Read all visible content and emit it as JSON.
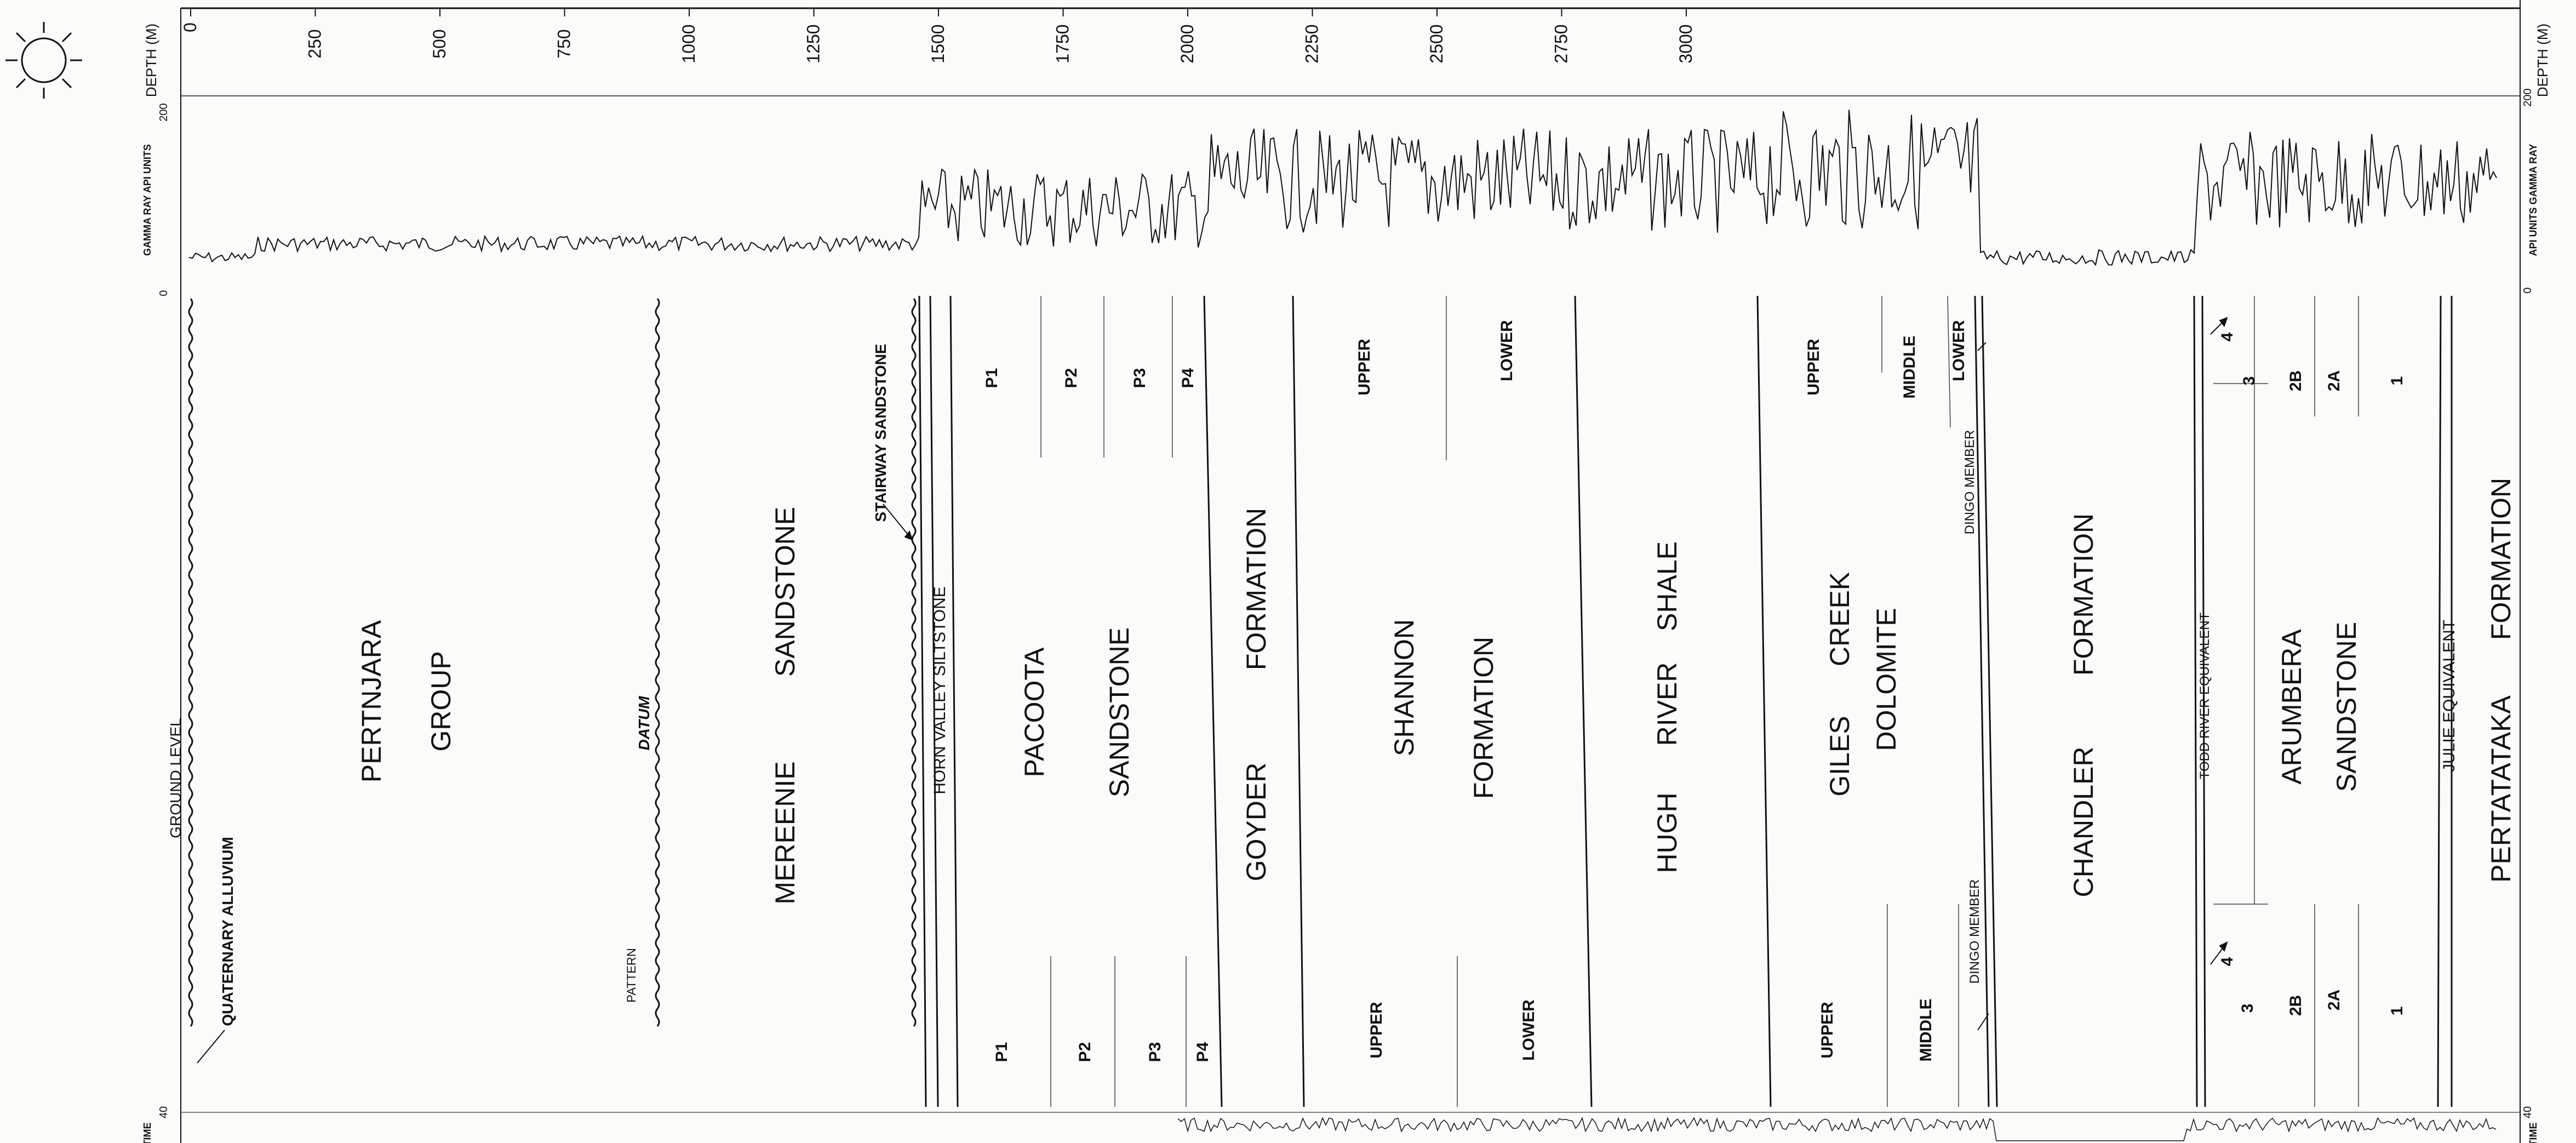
{
  "depth_axis": {
    "label_top": "DEPTH (M)",
    "label_right": "DEPTH (M)",
    "ticks": [
      "0",
      "250",
      "500",
      "750",
      "1000",
      "1250",
      "1500",
      "1750",
      "2000",
      "2250",
      "2500",
      "2750",
      "3000"
    ]
  },
  "gamma_track": {
    "label_left": "GAMMA RAY API UNITS",
    "label_right": "API UNITS GAMMA RAY",
    "scale_top_left": "200",
    "scale_bottom_left": "0",
    "scale_top_right": "200",
    "scale_bottom_right": "0"
  },
  "sonic_track": {
    "label_left": "TIME",
    "label_right": "TIME",
    "scale_left": "40",
    "scale_right": "40"
  },
  "markers": {
    "ground_level": "GROUND LEVEL",
    "datum": "DATUM",
    "quaternary_alluvium": "QUATERNARY ALLUVIUM",
    "stairway_sandstone": "STAIRWAY SANDSTONE",
    "horn_valley_siltstone": "HORN VALLEY SILTSTONE",
    "dingo_member_top": "DINGO MEMBER",
    "dingo_member_bottom": "DINGO MEMBER",
    "todd_river_equivalent": "TODD RIVER EQUIVALENT",
    "julie_equivalent": "JULIE EQUIVALENT",
    "faint_stamp": "PATTERN"
  },
  "formations": {
    "pertnjara_1": "PERTNJARA",
    "pertnjara_2": "GROUP",
    "mereenie_1": "MEREENIE",
    "mereenie_2": "SANDSTONE",
    "pacoota_1": "PACOOTA",
    "pacoota_2": "SANDSTONE",
    "goyder_1": "GOYDER",
    "goyder_2": "FORMATION",
    "shannon_1": "SHANNON",
    "shannon_2": "FORMATION",
    "hugh_1": "HUGH",
    "hugh_2": "RIVER",
    "hugh_3": "SHALE",
    "giles_1": "GILES",
    "giles_2": "CREEK",
    "giles_3": "DOLOMITE",
    "chandler_1": "CHANDLER",
    "chandler_2": "FORMATION",
    "arumbera_1": "ARUMBERA",
    "arumbera_2": "SANDSTONE",
    "pertatataka_1": "PERTATATAKA",
    "pertatataka_2": "FORMATION"
  },
  "subunits_top": {
    "p1": "P1",
    "p2": "P2",
    "p3": "P3",
    "p4": "P4",
    "shannon_upper": "UPPER",
    "shannon_lower": "LOWER",
    "giles_upper": "UPPER",
    "giles_middle": "MIDDLE",
    "giles_lower": "LOWER",
    "aru_4": "4",
    "aru_3": "3",
    "aru_2b": "2B",
    "aru_2a": "2A",
    "aru_1": "1"
  },
  "subunits_bottom": {
    "p1": "P1",
    "p2": "P2",
    "p3": "P3",
    "p4": "P4",
    "shannon_upper": "UPPER",
    "shannon_lower": "LOWER",
    "giles_upper": "UPPER",
    "giles_middle": "MIDDLE",
    "aru_4": "4",
    "aru_3": "3",
    "aru_2b": "2B",
    "aru_2a": "2A",
    "aru_1": "1"
  }
}
